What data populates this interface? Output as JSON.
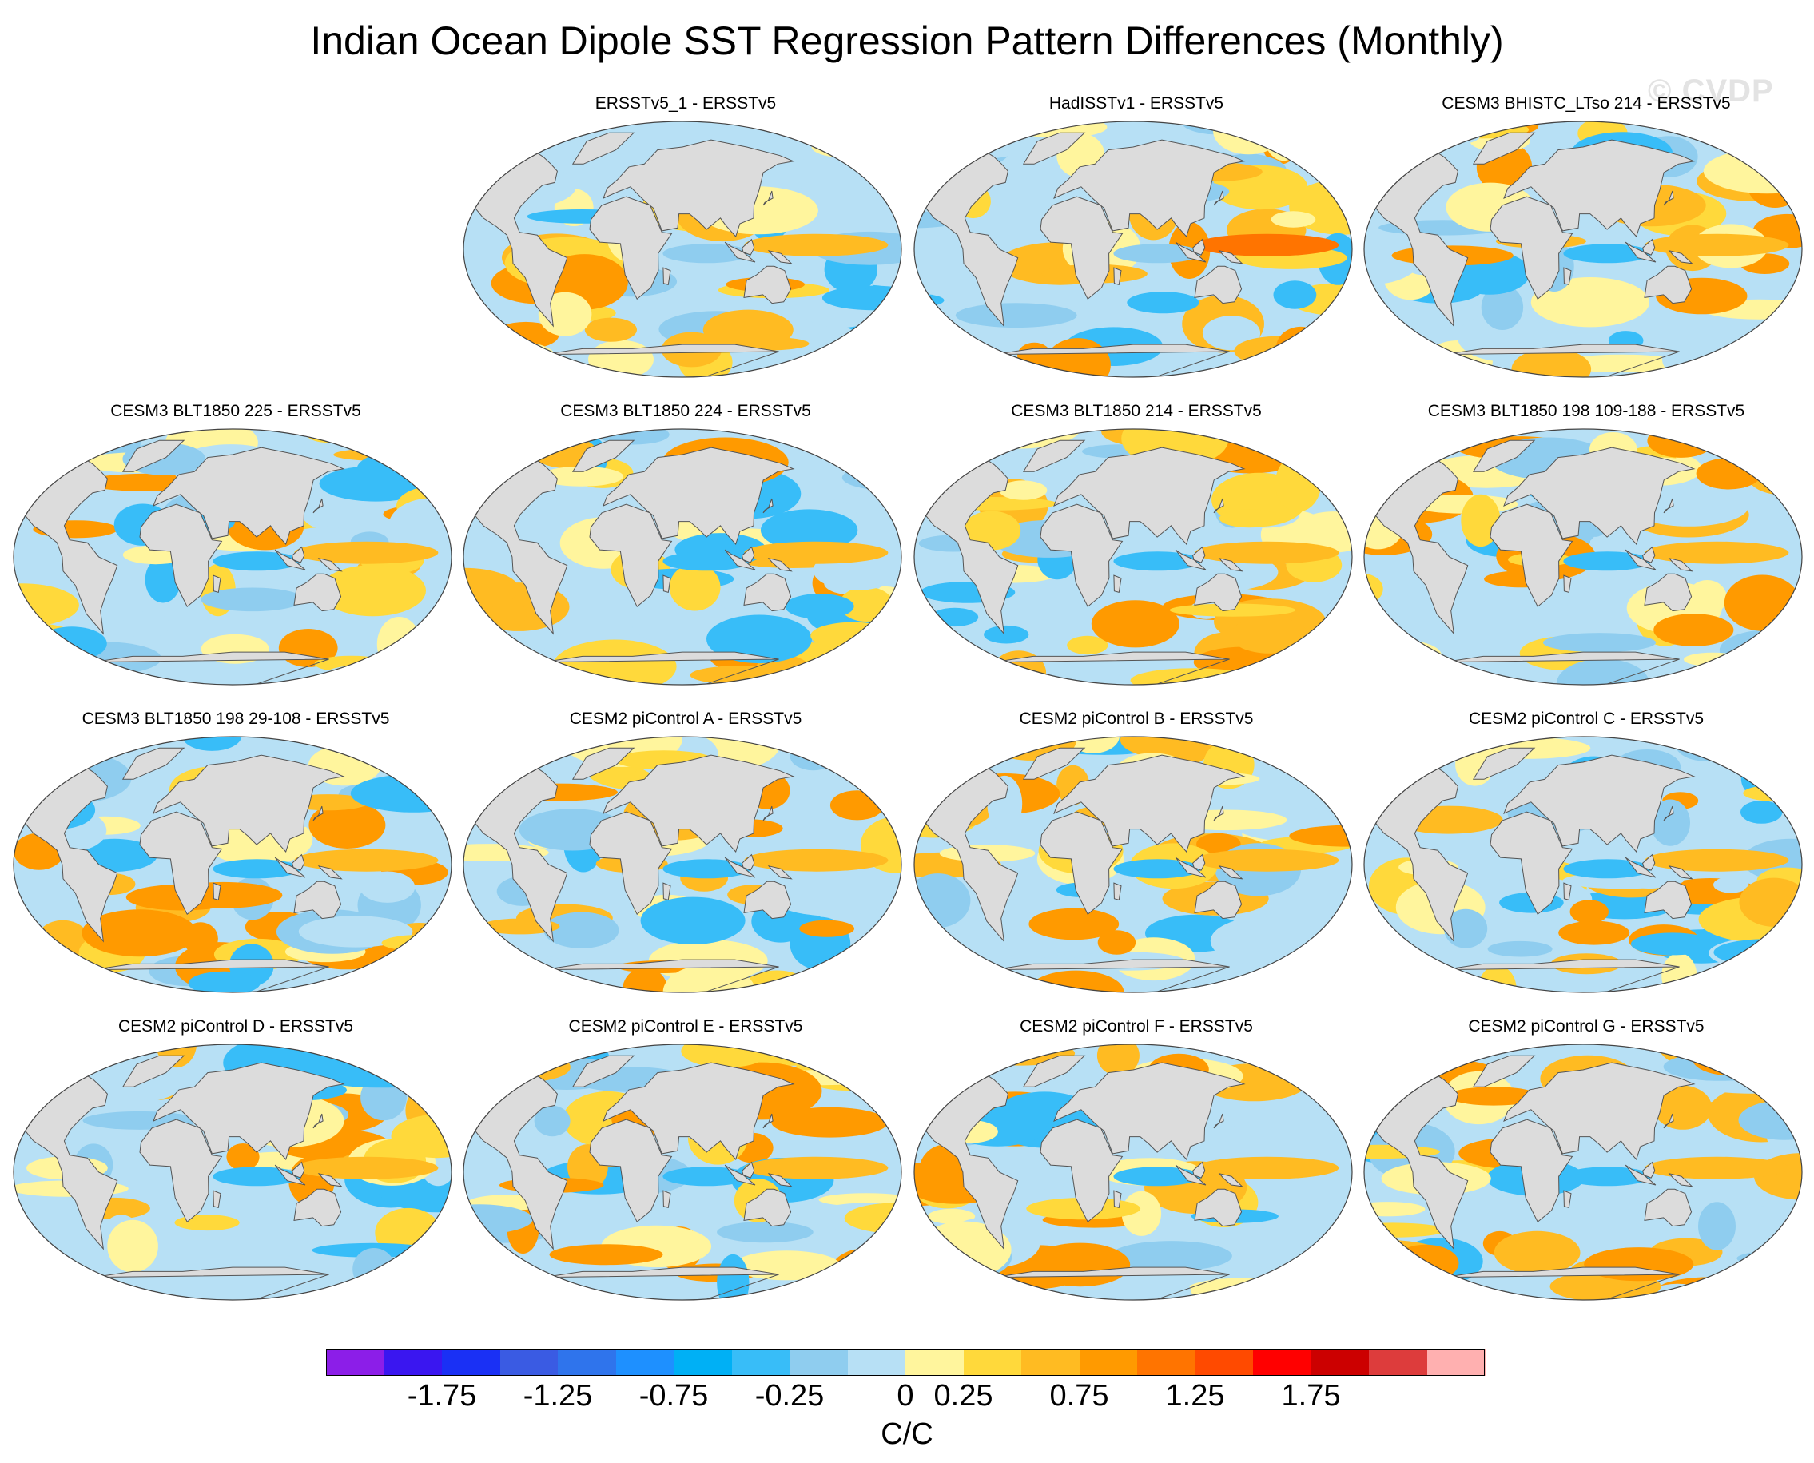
{
  "title": "Indian Ocean Dipole SST Regression Pattern Differences (Monthly)",
  "watermark": "© CVDP",
  "panels": [
    {
      "label": "ERSSTv5_1 - ERSSTv5",
      "variant": 1
    },
    {
      "label": "HadISSTv1 - ERSSTv5",
      "variant": 2
    },
    {
      "label": "CESM3 BHISTC_LTso 214 - ERSSTv5",
      "variant": 3
    },
    {
      "label": "CESM3 BLT1850 225 - ERSSTv5",
      "variant": 4
    },
    {
      "label": "CESM3 BLT1850 224 - ERSSTv5",
      "variant": 5
    },
    {
      "label": "CESM3 BLT1850 214 - ERSSTv5",
      "variant": 6
    },
    {
      "label": "CESM3 BLT1850 198 109-188 - ERSSTv5",
      "variant": 7
    },
    {
      "label": "CESM3 BLT1850 198 29-108 - ERSSTv5",
      "variant": 8
    },
    {
      "label": "CESM2 piControl A - ERSSTv5",
      "variant": 9
    },
    {
      "label": "CESM2 piControl B - ERSSTv5",
      "variant": 10
    },
    {
      "label": "CESM2 piControl C - ERSSTv5",
      "variant": 11
    },
    {
      "label": "CESM2 piControl D - ERSSTv5",
      "variant": 12
    },
    {
      "label": "CESM2 piControl E - ERSSTv5",
      "variant": 13
    },
    {
      "label": "CESM2 piControl F - ERSSTv5",
      "variant": 14
    },
    {
      "label": "CESM2 piControl G - ERSSTv5",
      "variant": 15
    }
  ],
  "colorbar": {
    "colors": [
      "#8c1ee8",
      "#3a16f0",
      "#1a30f5",
      "#3a5be3",
      "#2f74ec",
      "#1e90ff",
      "#00b0f5",
      "#38bdf8",
      "#8fcdef",
      "#b7e0f5",
      "#fff59d",
      "#ffd93b",
      "#ffbb22",
      "#ff9a00",
      "#ff7400",
      "#ff4a00",
      "#ff0000",
      "#cc0000",
      "#dd3c3c",
      "#ffb0b0"
    ],
    "tick_values": [
      "-1.75",
      "-1.25",
      "-0.75",
      "-0.25",
      "0",
      "0.25",
      "0.75",
      "1.25",
      "1.75"
    ],
    "units": "C/C"
  }
}
